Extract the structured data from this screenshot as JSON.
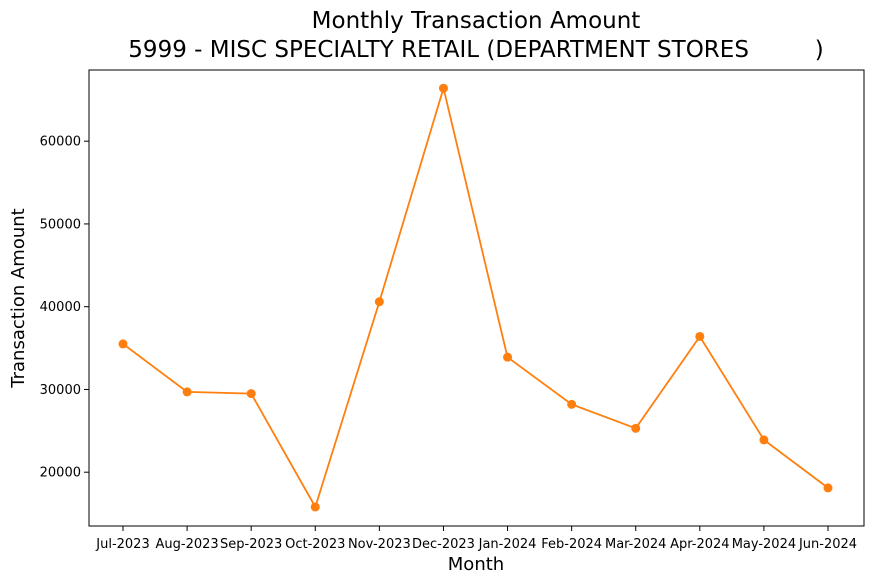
{
  "chart_data": {
    "type": "line",
    "title_line1": "Monthly Transaction Amount",
    "title_line2": "5999 - MISC SPECIALTY RETAIL (DEPARTMENT STORES         )",
    "xlabel": "Month",
    "ylabel": "Transaction Amount",
    "categories": [
      "Jul-2023",
      "Aug-2023",
      "Sep-2023",
      "Oct-2023",
      "Nov-2023",
      "Dec-2023",
      "Jan-2024",
      "Feb-2024",
      "Mar-2024",
      "Apr-2024",
      "May-2024",
      "Jun-2024"
    ],
    "series": [
      {
        "values": [
          35500,
          29700,
          29500,
          15800,
          40600,
          66400,
          33900,
          28200,
          25300,
          36400,
          23900,
          18100
        ],
        "color": "#ff7f0e"
      }
    ],
    "yticks": [
      20000,
      30000,
      40000,
      50000,
      60000
    ],
    "ylim": [
      13500,
      68600
    ],
    "grid": false,
    "legend": "none"
  }
}
